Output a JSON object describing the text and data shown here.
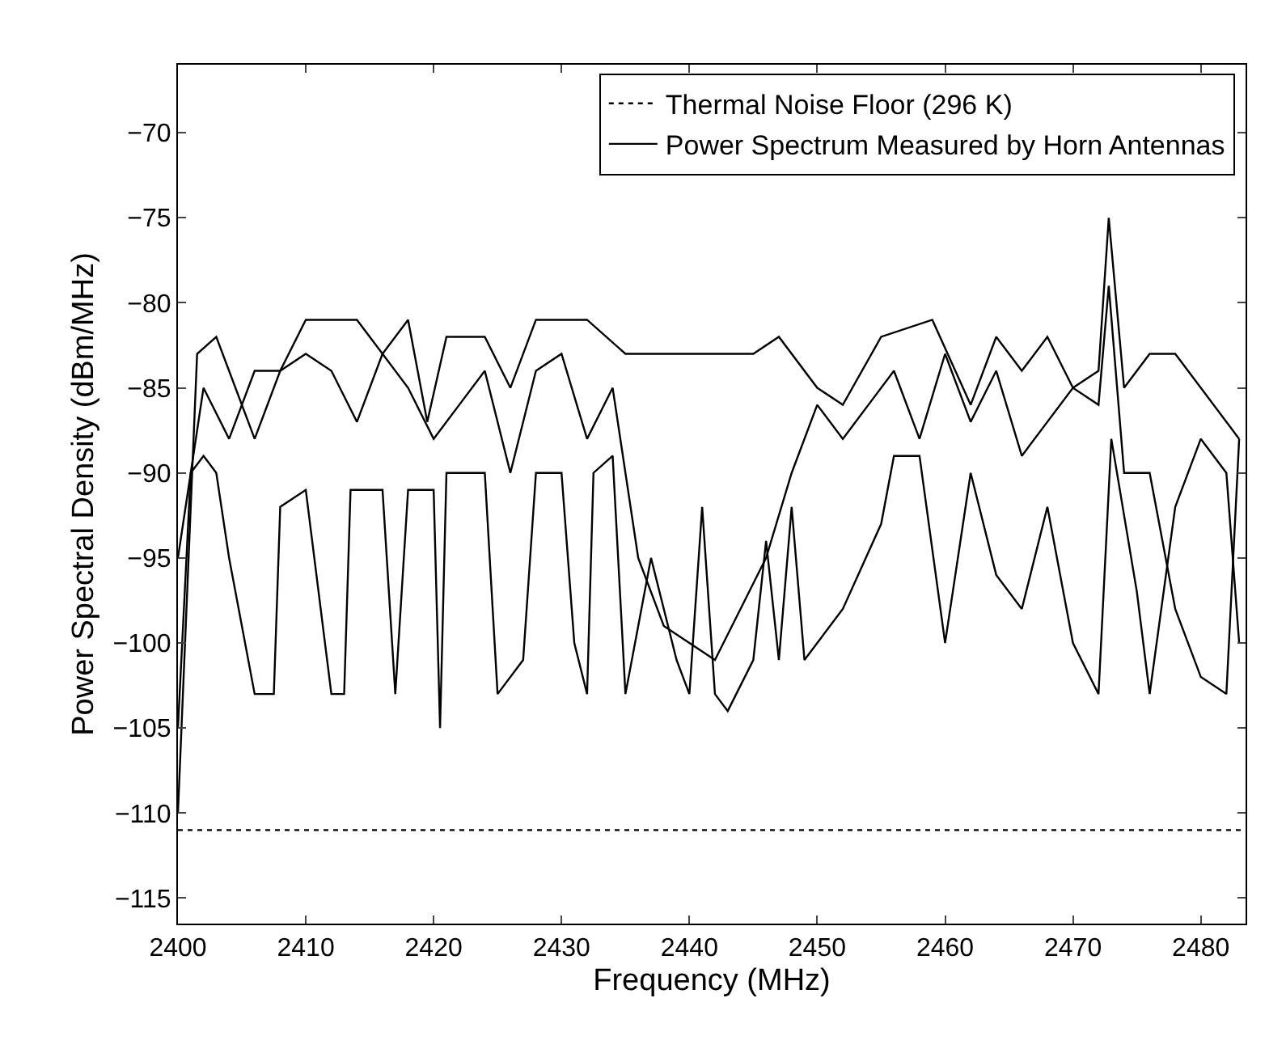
{
  "chart_data": {
    "type": "line",
    "xlabel": "Frequency (MHz)",
    "ylabel": "Power Spectral Density (dBm/MHz)",
    "xlim": [
      2400,
      2483.5
    ],
    "xticks": [
      2400,
      2410,
      2420,
      2430,
      2440,
      2450,
      2460,
      2470,
      2480
    ],
    "ylim": [
      -116.5,
      -66
    ],
    "yticks": [
      -115,
      -110,
      -105,
      -100,
      -95,
      -90,
      -85,
      -80,
      -75,
      -70
    ],
    "grid": false,
    "legend": "top right",
    "marker": "none",
    "series": [
      {
        "name": "Thermal Noise Floor (296 K)",
        "color": "#000000",
        "line_style": "dotted",
        "x": [
          2400,
          2483.5
        ],
        "values": [
          -111,
          -111
        ]
      },
      {
        "name": "Power Spectrum Measured by Horn Antennas",
        "color": "#000000",
        "line_style": "solid",
        "x": [
          2400,
          2401.5,
          2403,
          2406,
          2408,
          2410,
          2412,
          2414,
          2416,
          2418,
          2419.5,
          2421,
          2424,
          2426,
          2428,
          2432,
          2435,
          2440,
          2445,
          2447,
          2450,
          2452,
          2455,
          2459,
          2462,
          2464,
          2466,
          2468,
          2470,
          2472,
          2472.8,
          2474,
          2476,
          2478,
          2480,
          2483
        ],
        "values": [
          -110,
          -83,
          -82,
          -88,
          -84,
          -81,
          -81,
          -81,
          -83,
          -81,
          -87,
          -82,
          -82,
          -85,
          -81,
          -81,
          -83,
          -83,
          -83,
          -82,
          -85,
          -86,
          -82,
          -81,
          -86,
          -82,
          -84,
          -82,
          -85,
          -84,
          -75,
          -85,
          -83,
          -83,
          -85,
          -88
        ]
      },
      {
        "color": "#000000",
        "line_style": "solid",
        "x": [
          2400,
          2402,
          2404,
          2406,
          2408,
          2410,
          2412,
          2414,
          2416,
          2418,
          2420,
          2422,
          2424,
          2426,
          2428,
          2430,
          2432,
          2434,
          2436,
          2438,
          2440,
          2442,
          2444,
          2446,
          2448,
          2450,
          2452,
          2454,
          2456,
          2458,
          2460,
          2462,
          2464,
          2466,
          2468,
          2470,
          2472,
          2472.8,
          2474,
          2476,
          2478,
          2480,
          2482,
          2483
        ],
        "values": [
          -95,
          -85,
          -88,
          -84,
          -84,
          -83,
          -84,
          -87,
          -83,
          -85,
          -88,
          -86,
          -84,
          -90,
          -84,
          -83,
          -88,
          -85,
          -95,
          -99,
          -100,
          -101,
          -98,
          -95,
          -90,
          -86,
          -88,
          -86,
          -84,
          -88,
          -83,
          -87,
          -84,
          -89,
          -87,
          -85,
          -86,
          -79,
          -90,
          -90,
          -98,
          -102,
          -103,
          -88
        ]
      },
      {
        "color": "#000000",
        "line_style": "solid",
        "x": [
          2400,
          2401,
          2402,
          2403,
          2404,
          2406,
          2407.5,
          2408,
          2410,
          2412,
          2413,
          2413.5,
          2416,
          2417,
          2418,
          2420,
          2420.5,
          2421,
          2424,
          2425,
          2427,
          2428,
          2430,
          2431,
          2432,
          2432.5,
          2434,
          2435,
          2437,
          2439,
          2440,
          2441,
          2442,
          2443,
          2445,
          2446,
          2447,
          2448,
          2449,
          2452,
          2455,
          2456,
          2458,
          2460,
          2462,
          2464,
          2466,
          2468,
          2470,
          2472,
          2473,
          2475,
          2476,
          2478,
          2480,
          2482,
          2483
        ],
        "values": [
          -105,
          -90,
          -89,
          -90,
          -95,
          -103,
          -103,
          -92,
          -91,
          -103,
          -103,
          -91,
          -91,
          -103,
          -91,
          -91,
          -105,
          -90,
          -90,
          -103,
          -101,
          -90,
          -90,
          -100,
          -103,
          -90,
          -89,
          -103,
          -95,
          -101,
          -103,
          -92,
          -103,
          -104,
          -101,
          -94,
          -101,
          -92,
          -101,
          -98,
          -93,
          -89,
          -89,
          -100,
          -90,
          -96,
          -98,
          -92,
          -100,
          -103,
          -88,
          -97,
          -103,
          -92,
          -88,
          -90,
          -100
        ]
      }
    ]
  }
}
